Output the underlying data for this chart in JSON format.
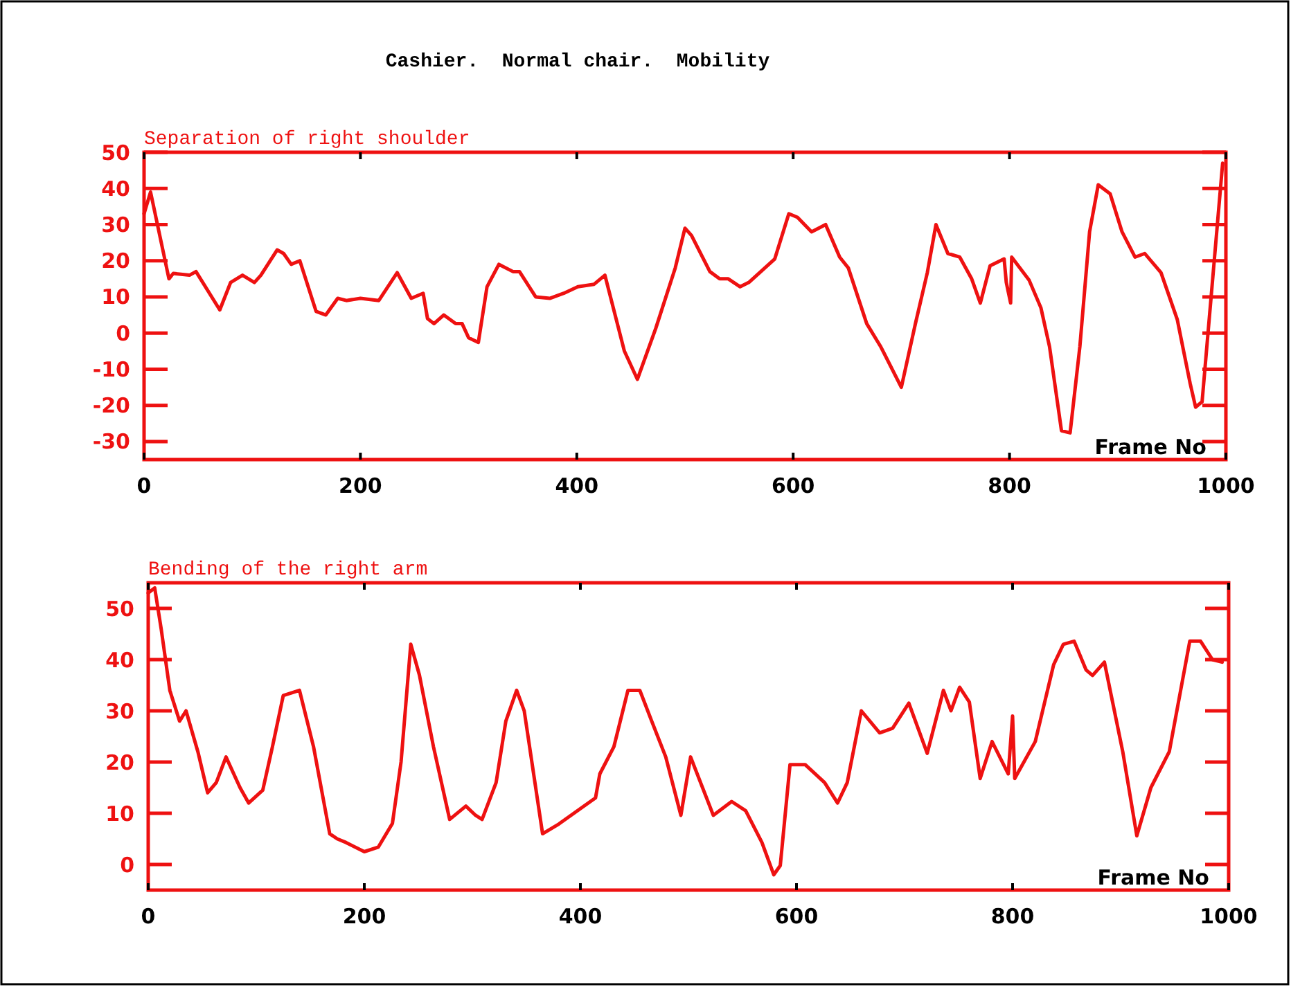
{
  "chart_data": [
    {
      "type": "line",
      "title": "Separation of right shoulder",
      "xlabel": "Frame No",
      "annotations": [
        "Cashier.  Normal chair.  Mobility"
      ],
      "xlim": [
        0,
        1000
      ],
      "xticks": [
        0,
        200,
        400,
        600,
        800,
        1000
      ],
      "ylim": [
        -35,
        50
      ],
      "yticks": [
        -30,
        -20,
        -10,
        0,
        10,
        20,
        30,
        40,
        50
      ],
      "grid": false,
      "series": [
        {
          "color": "#ee1111",
          "x": [
            0,
            6,
            23,
            27,
            42,
            48,
            70,
            80,
            91,
            102,
            108,
            123,
            129,
            136,
            144,
            159,
            168,
            179,
            187,
            200,
            217,
            234,
            247,
            258,
            262,
            268,
            277,
            288,
            294,
            300,
            309,
            317,
            328,
            341,
            347,
            362,
            375,
            388,
            401,
            416,
            426,
            444,
            456,
            473,
            491,
            500,
            506,
            523,
            532,
            540,
            551,
            559,
            583,
            596,
            604,
            617,
            630,
            643,
            651,
            668,
            681,
            700,
            713,
            724,
            732,
            743,
            754,
            765,
            773,
            782,
            795,
            797,
            801,
            802,
            818,
            829,
            837,
            848,
            856,
            865,
            874,
            882,
            893,
            904,
            916,
            925,
            940,
            955,
            967,
            972,
            978,
            997
          ],
          "values": [
            33,
            39,
            15,
            16.5,
            16,
            17,
            6.4,
            14,
            16,
            14,
            16,
            23,
            22,
            19,
            20,
            6,
            5,
            9.6,
            9,
            9.6,
            9,
            16.7,
            9.6,
            11,
            4,
            2.6,
            5,
            2.6,
            2.6,
            -1.3,
            -2.6,
            12.8,
            19,
            17,
            17,
            10,
            9.6,
            11,
            12.8,
            13.5,
            16,
            -5,
            -12.8,
            1.3,
            18,
            29,
            27,
            17,
            15,
            15,
            12.8,
            14,
            20.5,
            33,
            32,
            28,
            30,
            21,
            18,
            2.6,
            -3.8,
            -15,
            2.6,
            16.7,
            30,
            22,
            21,
            15,
            8.3,
            18.6,
            20.5,
            14,
            8.3,
            21,
            14.7,
            7,
            -3.8,
            -27,
            -27.6,
            -3.8,
            28,
            41,
            38.5,
            28,
            21,
            22,
            16.7,
            3.8,
            -14,
            -20.5,
            -19,
            47
          ]
        }
      ]
    },
    {
      "type": "line",
      "title": "Bending of the right arm",
      "xlabel": "Frame No",
      "xlim": [
        0,
        1000
      ],
      "xticks": [
        0,
        200,
        400,
        600,
        800,
        1000
      ],
      "ylim": [
        -5,
        55
      ],
      "yticks": [
        0,
        10,
        20,
        30,
        40,
        50
      ],
      "grid": false,
      "series": [
        {
          "color": "#ee1111",
          "x": [
            0,
            6,
            12,
            20,
            29,
            35,
            46,
            55,
            63,
            72,
            85,
            93,
            106,
            115,
            125,
            140,
            153,
            168,
            175,
            183,
            200,
            213,
            226,
            234,
            243,
            251,
            264,
            279,
            294,
            303,
            309,
            322,
            331,
            341,
            348,
            365,
            380,
            414,
            418,
            431,
            444,
            455,
            466,
            479,
            493,
            502,
            523,
            540,
            553,
            568,
            579,
            585,
            594,
            608,
            626,
            638,
            647,
            660,
            677,
            689,
            704,
            721,
            736,
            743,
            751,
            760,
            770,
            781,
            796,
            800,
            802,
            821,
            838,
            847,
            857,
            868,
            874,
            885,
            902,
            915,
            928,
            945,
            964,
            974,
            985,
            994
          ],
          "values": [
            53,
            54,
            46,
            34,
            28,
            30,
            22,
            14,
            16,
            21,
            15,
            12,
            14.5,
            23,
            33,
            34,
            23,
            6,
            5,
            4.3,
            2.5,
            3.4,
            8,
            20,
            43,
            37,
            23,
            8.8,
            11.4,
            9.6,
            8.8,
            16,
            28,
            34,
            30,
            6,
            7.9,
            13,
            17.7,
            23,
            34,
            34,
            28,
            21,
            9.6,
            21,
            9.6,
            12.3,
            10.5,
            4.3,
            -2,
            -0.2,
            19.5,
            19.5,
            16,
            12,
            16,
            30,
            25.7,
            26.6,
            31.5,
            21.7,
            34,
            30,
            34.6,
            31.7,
            16.8,
            24,
            17.7,
            29,
            16.8,
            24,
            39,
            43,
            43.6,
            38,
            36.9,
            39.5,
            22,
            5.6,
            15,
            22,
            43.6,
            43.6,
            40,
            39.5
          ]
        }
      ]
    }
  ]
}
